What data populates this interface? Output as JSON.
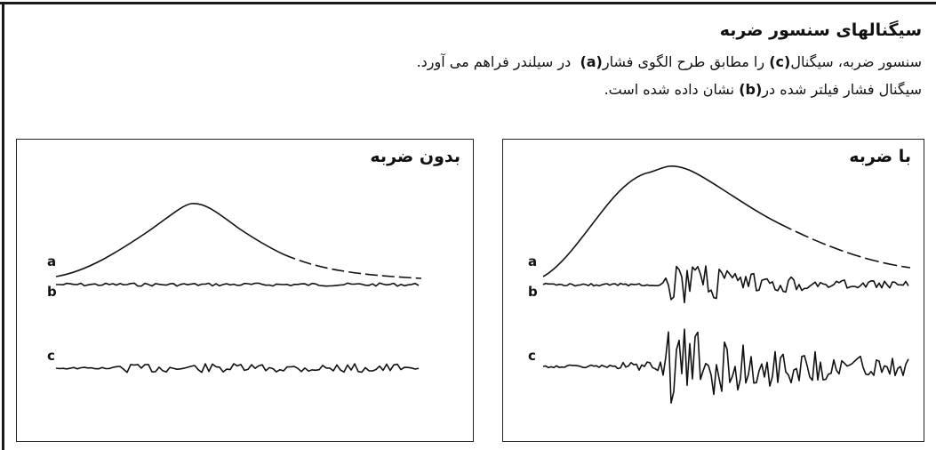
{
  "heading": "سیگنالهای سنسور ضربه",
  "line1": {
    "p1": "سنسور ضربه، سیگنال",
    "c": "(c)",
    "p2": "را مطابق طرح الگوی فشار",
    "a": "(a)",
    "p3": "در سیلندر فراهم می آورد."
  },
  "line2": {
    "p1": "سیگنال فشار فیلتر شده در",
    "b": "(b)",
    "p2": "نشان داده شده است."
  },
  "panel_no_knock": {
    "title": "بدون ضربه",
    "label_a": "a",
    "label_b": "b",
    "label_c": "c"
  },
  "panel_knock": {
    "title": "با ضربه",
    "label_a": "a",
    "label_b": "b",
    "label_c": "c"
  }
}
